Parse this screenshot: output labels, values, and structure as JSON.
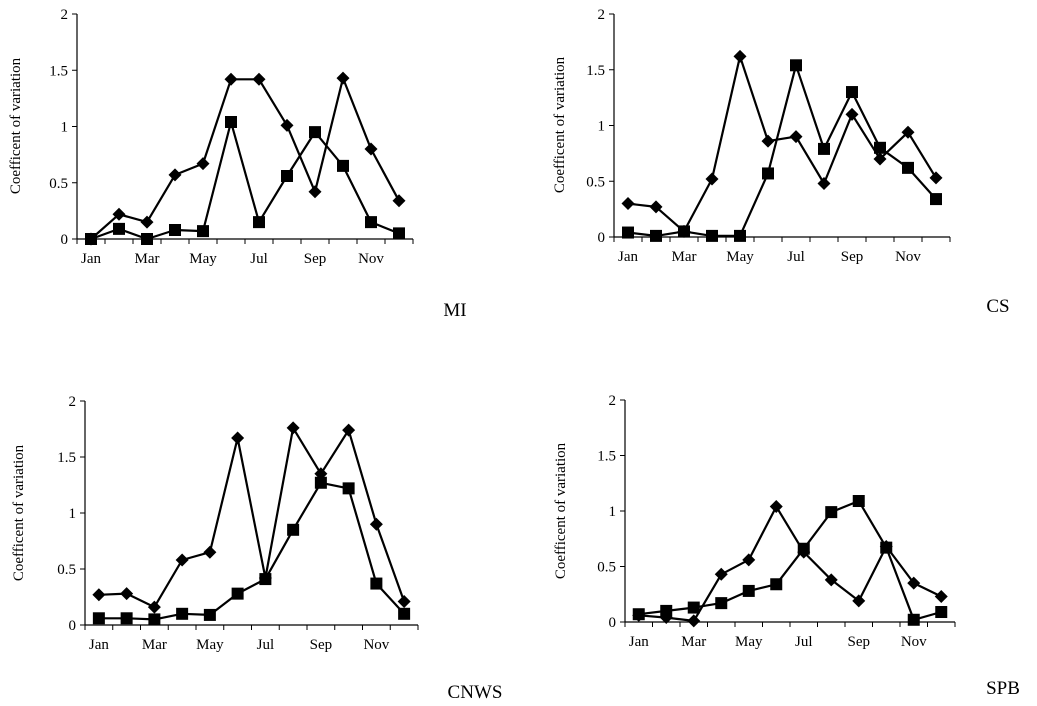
{
  "chart_data": [
    {
      "type": "line",
      "title": "MI",
      "xlabel": "",
      "ylabel": "Coefficent of variation",
      "categories": [
        "Jan",
        "Feb",
        "Mar",
        "Apr",
        "May",
        "Jun",
        "Jul",
        "Aug",
        "Sep",
        "Oct",
        "Nov",
        "Dec"
      ],
      "x_tick_labels": [
        "Jan",
        "Mar",
        "May",
        "Jul",
        "Sep",
        "Nov"
      ],
      "y_ticks": [
        "0",
        "0.5",
        "1",
        "1.5",
        "2"
      ],
      "ylim": [
        0,
        2
      ],
      "grid": false,
      "series": [
        {
          "marker": "diamond",
          "values": [
            0.0,
            0.22,
            0.15,
            0.57,
            0.67,
            1.42,
            1.42,
            1.01,
            0.42,
            1.43,
            0.8,
            0.34
          ]
        },
        {
          "marker": "square",
          "values": [
            0.0,
            0.09,
            0.0,
            0.08,
            0.07,
            1.04,
            0.15,
            0.56,
            0.95,
            0.65,
            0.15,
            0.05
          ]
        }
      ]
    },
    {
      "type": "line",
      "title": "CS",
      "xlabel": "",
      "ylabel": "Coefficent of variation",
      "categories": [
        "Jan",
        "Feb",
        "Mar",
        "Apr",
        "May",
        "Jun",
        "Jul",
        "Aug",
        "Sep",
        "Oct",
        "Nov",
        "Dec"
      ],
      "x_tick_labels": [
        "Jan",
        "Mar",
        "May",
        "Jul",
        "Sep",
        "Nov"
      ],
      "y_ticks": [
        "0",
        "0.5",
        "1",
        "1.5",
        "2"
      ],
      "ylim": [
        0,
        2
      ],
      "grid": false,
      "series": [
        {
          "marker": "diamond",
          "values": [
            0.3,
            0.27,
            0.05,
            0.52,
            1.62,
            0.86,
            0.9,
            0.48,
            1.1,
            0.7,
            0.94,
            0.53
          ]
        },
        {
          "marker": "square",
          "values": [
            0.04,
            0.01,
            0.05,
            0.01,
            0.01,
            0.57,
            1.54,
            0.79,
            1.3,
            0.8,
            0.62,
            0.34
          ]
        }
      ]
    },
    {
      "type": "line",
      "title": "CNWS",
      "xlabel": "",
      "ylabel": "Coefficent of variation",
      "categories": [
        "Jan",
        "Feb",
        "Mar",
        "Apr",
        "May",
        "Jun",
        "Jul",
        "Aug",
        "Sep",
        "Oct",
        "Nov",
        "Dec"
      ],
      "x_tick_labels": [
        "Jan",
        "Mar",
        "May",
        "Jul",
        "Sep",
        "Nov"
      ],
      "y_ticks": [
        "0",
        "0.5",
        "1",
        "1.5",
        "2"
      ],
      "ylim": [
        0,
        2
      ],
      "grid": false,
      "series": [
        {
          "marker": "diamond",
          "values": [
            0.27,
            0.28,
            0.16,
            0.58,
            0.65,
            1.67,
            0.42,
            1.76,
            1.35,
            1.74,
            0.9,
            0.21
          ]
        },
        {
          "marker": "square",
          "values": [
            0.06,
            0.06,
            0.05,
            0.1,
            0.09,
            0.28,
            0.41,
            0.85,
            1.27,
            1.22,
            0.37,
            0.1
          ]
        }
      ]
    },
    {
      "type": "line",
      "title": "SPB",
      "xlabel": "",
      "ylabel": "Coefficent of variation",
      "categories": [
        "Jan",
        "Feb",
        "Mar",
        "Apr",
        "May",
        "Jun",
        "Jul",
        "Aug",
        "Sep",
        "Oct",
        "Nov",
        "Dec"
      ],
      "x_tick_labels": [
        "Jan",
        "Mar",
        "May",
        "Jul",
        "Sep",
        "Nov"
      ],
      "y_ticks": [
        "0",
        "0.5",
        "1",
        "1.5",
        "2"
      ],
      "ylim": [
        0,
        2
      ],
      "grid": false,
      "series": [
        {
          "marker": "diamond",
          "values": [
            0.06,
            0.04,
            0.01,
            0.43,
            0.56,
            1.04,
            0.63,
            0.38,
            0.19,
            0.68,
            0.35,
            0.23
          ]
        },
        {
          "marker": "square",
          "values": [
            0.07,
            0.1,
            0.13,
            0.17,
            0.28,
            0.34,
            0.66,
            0.99,
            1.09,
            0.67,
            0.02,
            0.09
          ]
        }
      ]
    }
  ]
}
